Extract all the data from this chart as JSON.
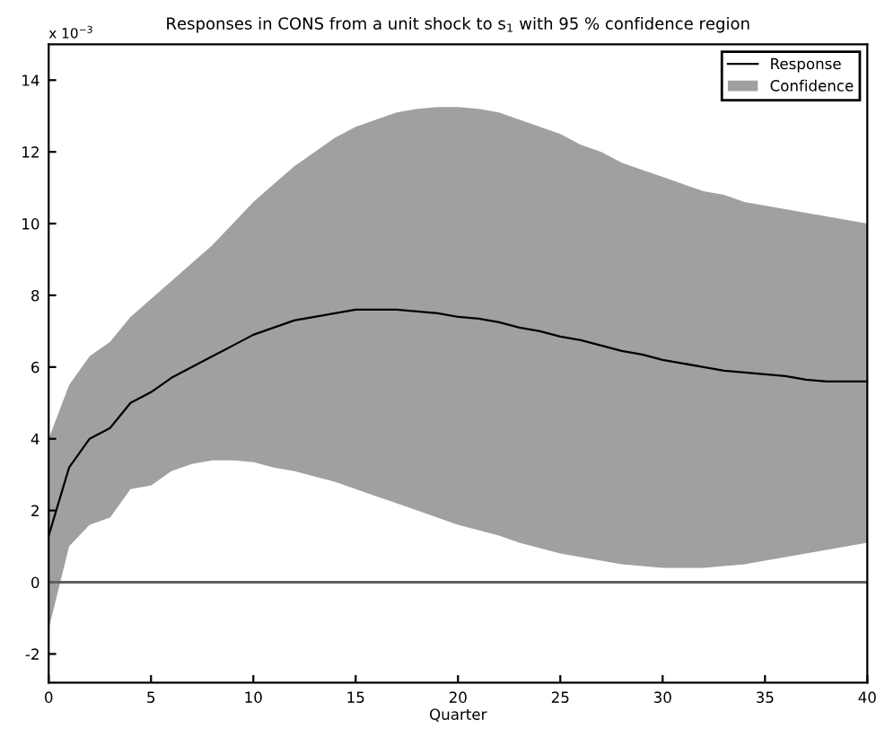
{
  "chart_data": {
    "type": "line",
    "title": "Responses in CONS from a unit shock to s$_{1}$ with 95 % confidence region",
    "xlabel": "Quarter",
    "annotations": [
      "x 10$^{−3}$",
      "Confidence"
    ],
    "x": [
      0,
      1,
      2,
      3,
      4,
      5,
      6,
      7,
      8,
      9,
      10,
      11,
      12,
      13,
      14,
      15,
      16,
      17,
      18,
      19,
      20,
      21,
      22,
      23,
      24,
      25,
      26,
      27,
      28,
      29,
      30,
      31,
      32,
      33,
      34,
      35,
      36,
      37,
      38,
      39,
      40
    ],
    "series": [
      {
        "name": "Response",
        "color": "#000000",
        "values": [
          1.3,
          3.2,
          4.0,
          4.3,
          5.0,
          5.3,
          5.7,
          6.0,
          6.3,
          6.6,
          6.9,
          7.1,
          7.3,
          7.4,
          7.5,
          7.6,
          7.6,
          7.6,
          7.55,
          7.5,
          7.4,
          7.35,
          7.25,
          7.1,
          7.0,
          6.85,
          6.75,
          6.6,
          6.45,
          6.35,
          6.2,
          6.1,
          6.0,
          5.9,
          5.85,
          5.8,
          5.75,
          5.65,
          5.6,
          5.6,
          5.6
        ],
        "upper": [
          4.0,
          5.5,
          6.3,
          6.7,
          7.4,
          7.9,
          8.4,
          8.9,
          9.4,
          10.0,
          10.6,
          11.1,
          11.6,
          12.0,
          12.4,
          12.7,
          12.9,
          13.1,
          13.2,
          13.25,
          13.25,
          13.2,
          13.1,
          12.9,
          12.7,
          12.5,
          12.2,
          12.0,
          11.7,
          11.5,
          11.3,
          11.1,
          10.9,
          10.8,
          10.6,
          10.5,
          10.4,
          10.3,
          10.2,
          10.1,
          10.0
        ],
        "lower": [
          -1.3,
          1.0,
          1.6,
          1.8,
          2.6,
          2.7,
          3.1,
          3.3,
          3.4,
          3.4,
          3.35,
          3.2,
          3.1,
          2.95,
          2.8,
          2.6,
          2.4,
          2.2,
          2.0,
          1.8,
          1.6,
          1.45,
          1.3,
          1.1,
          0.95,
          0.8,
          0.7,
          0.6,
          0.5,
          0.45,
          0.4,
          0.4,
          0.4,
          0.45,
          0.5,
          0.6,
          0.7,
          0.8,
          0.9,
          1.0,
          1.1
        ]
      }
    ],
    "ref_lines": [
      {
        "axis": "y",
        "value": 0,
        "color": "#606060"
      }
    ],
    "xlim": [
      0,
      40
    ],
    "xticks": [
      0,
      5,
      10,
      15,
      20,
      25,
      30,
      35,
      40
    ],
    "ylim": [
      -2.8,
      15
    ],
    "yticks": [
      -2,
      0,
      2,
      4,
      6,
      8,
      10,
      12,
      14
    ],
    "grid": false,
    "legend": "top right"
  }
}
